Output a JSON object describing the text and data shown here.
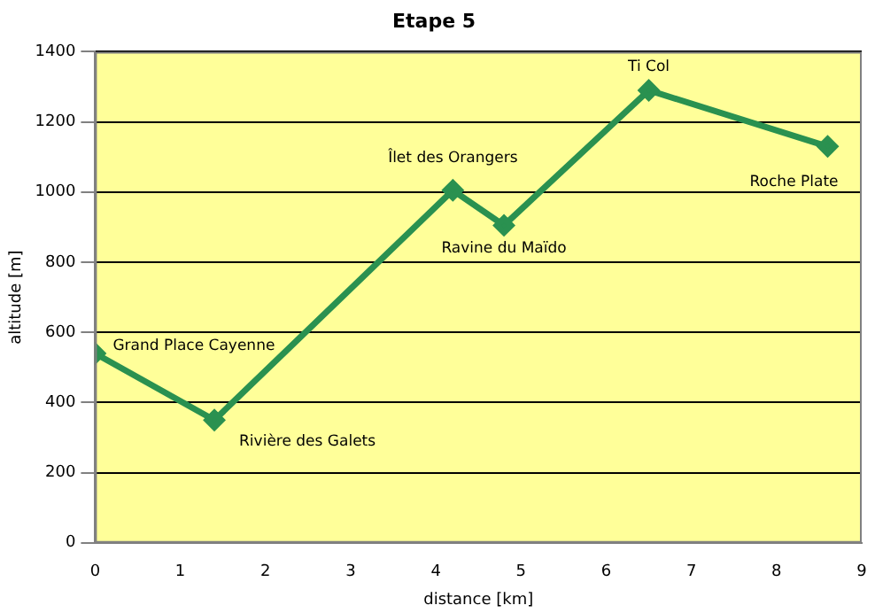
{
  "chart_data": {
    "type": "line",
    "title": "Etape 5",
    "xlabel": "distance [km]",
    "ylabel": "altitude [m]",
    "x": [
      0,
      1.4,
      4.2,
      4.8,
      6.5,
      8.6
    ],
    "series": [
      {
        "color": "#2a9150",
        "values": [
          540,
          350,
          1005,
          905,
          1290,
          1130
        ]
      }
    ],
    "xlim": [
      0,
      9
    ],
    "xticks": [
      0,
      1,
      2,
      3,
      4,
      5,
      6,
      7,
      8,
      9
    ],
    "ylim": [
      0,
      1400
    ],
    "yticks": [
      0,
      200,
      400,
      600,
      800,
      1000,
      1200,
      1400
    ],
    "grid": "y",
    "legend": false,
    "marker": "diamond",
    "line_style": "solid",
    "annotations": [
      {
        "text": "Grand Place Cayenne",
        "x": 0,
        "y": 540
      },
      {
        "text": "Rivière des Galets",
        "x": 1.4,
        "y": 350
      },
      {
        "text": "Îlet des Orangers",
        "x": 4.2,
        "y": 1005
      },
      {
        "text": "Ravine du Maïdo",
        "x": 4.8,
        "y": 905
      },
      {
        "text": "Ti Col",
        "x": 6.5,
        "y": 1290
      },
      {
        "text": "Roche Plate",
        "x": 8.6,
        "y": 1130
      }
    ]
  }
}
